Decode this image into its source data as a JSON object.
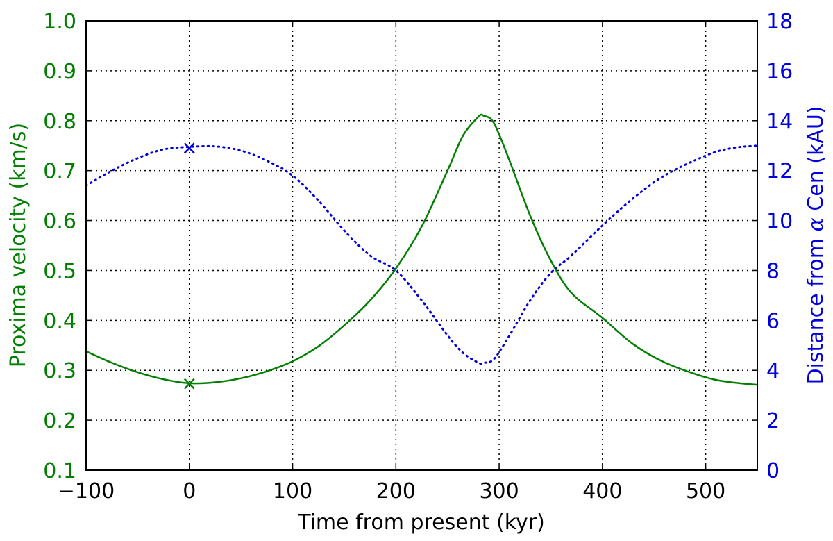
{
  "chart_data": {
    "type": "line",
    "xlabel": "Time from present (kyr)",
    "ylabel": "Proxima velocity (km/s)",
    "ylabel_right_prefix": "Distance from ",
    "ylabel_right_symbol": "α",
    "ylabel_right_suffix": " Cen (kAU)",
    "xlim": [
      -100,
      550
    ],
    "ylim": [
      0.1,
      1.0
    ],
    "ylim_right": [
      0,
      18
    ],
    "xticks": [
      -100,
      0,
      100,
      200,
      300,
      400,
      500
    ],
    "xtick_labels": [
      "−100",
      "0",
      "100",
      "200",
      "300",
      "400",
      "500"
    ],
    "yticks": [
      0.1,
      0.2,
      0.3,
      0.4,
      0.5,
      0.6,
      0.7,
      0.8,
      0.9,
      1.0
    ],
    "ytick_labels": [
      "0.1",
      "0.2",
      "0.3",
      "0.4",
      "0.5",
      "0.6",
      "0.7",
      "0.8",
      "0.9",
      "1.0"
    ],
    "yticks_right": [
      0,
      2,
      4,
      6,
      8,
      10,
      12,
      14,
      16,
      18
    ],
    "ytick_labels_right": [
      "0",
      "2",
      "4",
      "6",
      "8",
      "10",
      "12",
      "14",
      "16",
      "18"
    ],
    "grid": true,
    "colors": {
      "velocity": "#007f00",
      "distance": "#0000dd",
      "axes": "#000000",
      "grid": "#000000"
    },
    "series": [
      {
        "axis": "left",
        "style": "solid",
        "x": [
          -100,
          -75,
          -50,
          -25,
          0,
          25,
          50,
          75,
          100,
          125,
          150,
          175,
          200,
          225,
          250,
          265,
          280,
          285,
          295,
          310,
          330,
          350,
          370,
          400,
          430,
          460,
          500,
          525,
          550
        ],
        "y": [
          0.338,
          0.315,
          0.296,
          0.282,
          0.274,
          0.276,
          0.284,
          0.298,
          0.318,
          0.348,
          0.39,
          0.44,
          0.504,
          0.588,
          0.7,
          0.77,
          0.808,
          0.81,
          0.795,
          0.72,
          0.61,
          0.52,
          0.455,
          0.405,
          0.352,
          0.316,
          0.286,
          0.276,
          0.271
        ]
      },
      {
        "axis": "right",
        "style": "dotted",
        "x": [
          -100,
          -75,
          -50,
          -25,
          0,
          25,
          50,
          75,
          100,
          125,
          150,
          175,
          200,
          225,
          250,
          265,
          280,
          285,
          295,
          310,
          330,
          350,
          370,
          400,
          430,
          460,
          500,
          525,
          550
        ],
        "y": [
          11.4,
          12.0,
          12.5,
          12.85,
          12.95,
          12.97,
          12.8,
          12.4,
          11.8,
          10.8,
          9.6,
          8.6,
          8.0,
          6.8,
          5.4,
          4.7,
          4.3,
          4.3,
          4.45,
          5.4,
          6.8,
          7.9,
          8.6,
          9.8,
          10.9,
          11.8,
          12.6,
          12.9,
          13.0
        ]
      }
    ],
    "markers": [
      {
        "axis": "left",
        "x": 0,
        "y": 0.273,
        "symbol": "x"
      },
      {
        "axis": "right",
        "x": 0,
        "y": 12.9,
        "symbol": "x"
      }
    ]
  }
}
